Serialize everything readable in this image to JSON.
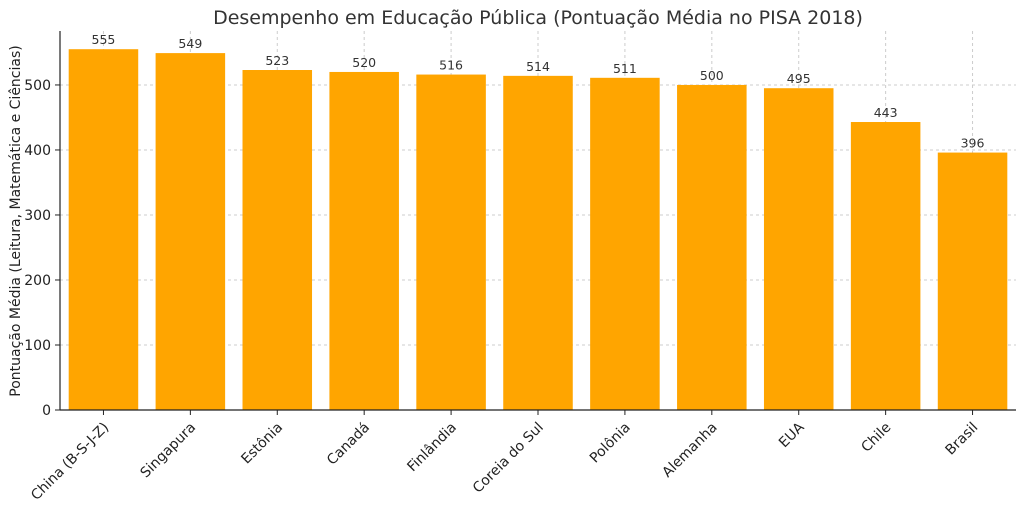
{
  "chart_data": {
    "type": "bar",
    "title": "Desempenho em Educação Pública (Pontuação Média no PISA 2018)",
    "xlabel": "",
    "ylabel": "Pontuação Média (Leitura, Matemática e Ciências)",
    "categories": [
      "China (B-S-J-Z)",
      "Singapura",
      "Estônia",
      "Canadá",
      "Finlândia",
      "Coreia do Sul",
      "Polônia",
      "Alemanha",
      "EUA",
      "Chile",
      "Brasil"
    ],
    "values": [
      555,
      549,
      523,
      520,
      516,
      514,
      511,
      500,
      495,
      443,
      396
    ],
    "ylim": [
      0,
      583
    ],
    "yticks": [
      0,
      100,
      200,
      300,
      400,
      500
    ],
    "bar_color": "#FFA500",
    "grid": true
  }
}
